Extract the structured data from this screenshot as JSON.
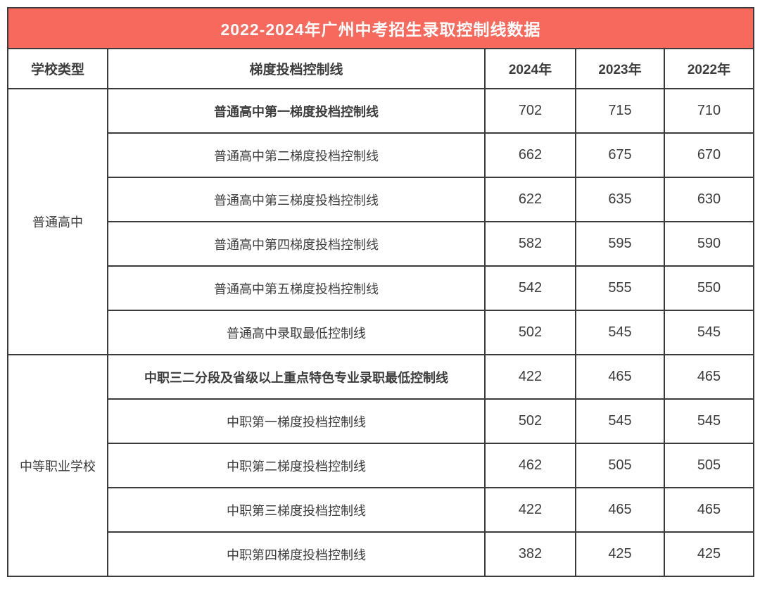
{
  "title": "2022-2024年广州中考招生录取控制线数据",
  "colors": {
    "title_background": "#F7695D",
    "title_text": "#FFFFFF",
    "border": "#3B3B3B",
    "cell_text": "#3D3D3D",
    "cell_background": "#FFFFFF"
  },
  "chart_data": {
    "type": "table",
    "title": "2022-2024年广州中考招生录取控制线数据",
    "columns": [
      "学校类型",
      "梯度投档控制线",
      "2024年",
      "2023年",
      "2022年"
    ],
    "sections": [
      {
        "category": "普通高中",
        "rows": [
          {
            "label": "普通高中第一梯度投档控制线",
            "bold": true,
            "values": [
              702,
              715,
              710
            ]
          },
          {
            "label": "普通高中第二梯度投档控制线",
            "bold": false,
            "values": [
              662,
              675,
              670
            ]
          },
          {
            "label": "普通高中第三梯度投档控制线",
            "bold": false,
            "values": [
              622,
              635,
              630
            ]
          },
          {
            "label": "普通高中第四梯度投档控制线",
            "bold": false,
            "values": [
              582,
              595,
              590
            ]
          },
          {
            "label": "普通高中第五梯度投档控制线",
            "bold": false,
            "values": [
              542,
              555,
              550
            ]
          },
          {
            "label": "普通高中录取最低控制线",
            "bold": false,
            "values": [
              502,
              545,
              545
            ]
          }
        ]
      },
      {
        "category": "中等职业学校",
        "rows": [
          {
            "label": "中职三二分段及省级以上重点特色专业录职最低控制线",
            "bold": true,
            "values": [
              422,
              465,
              465
            ]
          },
          {
            "label": "中职第一梯度投档控制线",
            "bold": false,
            "values": [
              502,
              545,
              545
            ]
          },
          {
            "label": "中职第二梯度投档控制线",
            "bold": false,
            "values": [
              462,
              505,
              505
            ]
          },
          {
            "label": "中职第三梯度投档控制线",
            "bold": false,
            "values": [
              422,
              465,
              465
            ]
          },
          {
            "label": "中职第四梯度投档控制线",
            "bold": false,
            "values": [
              382,
              425,
              425
            ]
          }
        ]
      }
    ]
  }
}
